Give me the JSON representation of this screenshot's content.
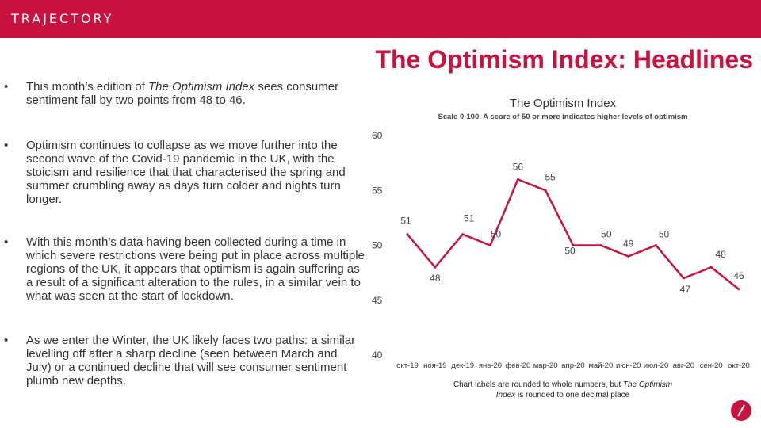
{
  "brand": {
    "logo": "TRAJECTORY",
    "accent_color": "#c8123f"
  },
  "headline": "The Optimism Index: Headlines",
  "bullets": [
    {
      "marker": "•",
      "parts": [
        "This month’s edition of ",
        "The Optimism Index",
        " sees consumer sentiment fall by two points from 48 to 46."
      ]
    },
    {
      "marker": "•",
      "text": "Optimism continues to collapse as we move further into the second wave of the Covid-19 pandemic in the UK, with the stoicism and resilience that that characterised the spring and summer crumbling away as days turn colder and nights turn longer."
    },
    {
      "marker": "•",
      "text": "With this month’s data having been collected during a time in which severe restrictions were being put in place across multiple regions of the UK, it appears that optimism is again suffering as a result of a significant alteration to the rules, in a similar vein to what was seen at the start of lockdown."
    },
    {
      "marker": "•",
      "text": "As we enter the Winter, the UK likely faces two paths: a similar levelling off after a sharp decline (seen between March and July) or a continued decline that will see consumer sentiment plumb new depths."
    }
  ],
  "chart_data": {
    "type": "line",
    "title": "The Optimism Index",
    "subtitle": "Scale 0-100. A score of 50 or more indicates higher levels of optimism",
    "categories": [
      "окт-19",
      "ноя-19",
      "дек-19",
      "янв-20",
      "фев-20",
      "мар-20",
      "апр-20",
      "май-20",
      "июн-20",
      "июл-20",
      "авг-20",
      "сен-20",
      "окт-20"
    ],
    "values": [
      51,
      48,
      51,
      50,
      56,
      55,
      50,
      50,
      49,
      50,
      47,
      48,
      46
    ],
    "data_labels": [
      "51",
      "48",
      "51",
      "50",
      "56",
      "55",
      "50",
      "50",
      "49",
      "50",
      "47",
      "48",
      "46"
    ],
    "y_ticks": [
      "60",
      "55",
      "50",
      "45",
      "40"
    ],
    "ylim": [
      40,
      60
    ],
    "grid": false,
    "line_color": "#c8123f"
  },
  "note": {
    "line1": "Chart labels are rounded to whole numbers, but ",
    "italic": "The Optimism Index",
    "line2": " is rounded to one decimal place"
  }
}
